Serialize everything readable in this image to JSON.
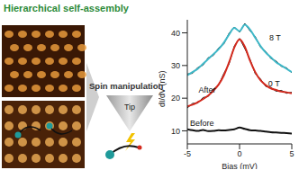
{
  "diagram": {
    "title": "Hierarchical self-assembly",
    "arrow_label": "Spin manipulation",
    "tip_label": "Tip"
  },
  "chart_data": {
    "type": "line",
    "x_label": "Bias (mV)",
    "y_label": "dI/dV (nS)",
    "x": [
      -5,
      -4.5,
      -4,
      -3.5,
      -3,
      -2.5,
      -2,
      -1.5,
      -1,
      -0.5,
      0,
      0.5,
      1,
      1.5,
      2,
      2.5,
      3,
      3.5,
      4,
      4.5,
      5
    ],
    "xlim": [
      -5,
      5
    ],
    "xticks": [
      -5,
      0,
      5
    ],
    "ylim": [
      6,
      44
    ],
    "yticks": [
      10,
      20,
      30,
      40
    ],
    "grid": false,
    "series": [
      {
        "name": "Before",
        "color": "#111111",
        "values": [
          10.5,
          10.2,
          10,
          10.3,
          9.9,
          10,
          10.2,
          10.1,
          10.3,
          10.5,
          11,
          10.6,
          10.2,
          10.1,
          10,
          9.8,
          9.6,
          9.5,
          9.4,
          9.3,
          9.2
        ],
        "label_x": -3.6,
        "label_y": 12.5
      },
      {
        "name": "0 T",
        "color": "#d42a1e",
        "values": [
          17.5,
          18,
          18.8,
          19.7,
          20.8,
          22.3,
          24.2,
          27,
          31,
          35.5,
          38,
          35.8,
          31.5,
          28,
          25.5,
          24,
          23,
          22.5,
          22,
          21.8,
          21.5
        ],
        "data": [
          17,
          18.4,
          18.5,
          20.2,
          20.5,
          22.8,
          24,
          27.6,
          30.5,
          36,
          38.3,
          35.2,
          31.9,
          27.5,
          25.9,
          23.6,
          23.3,
          22.1,
          22.4,
          21.5,
          21.8
        ],
        "label_x": 3.3,
        "label_y": 24.5
      },
      {
        "name": "8 T",
        "color": "#3fb8c8",
        "values": [
          27,
          28,
          29,
          30.5,
          32,
          33.5,
          35,
          37,
          39.5,
          41.5,
          40.5,
          42.5,
          41,
          38.5,
          36,
          34,
          32.5,
          31,
          30,
          29,
          28
        ],
        "data": [
          27.4,
          27.6,
          29.4,
          30.1,
          32.4,
          33.1,
          35.4,
          36.6,
          39.9,
          41.8,
          40.2,
          42.9,
          40.6,
          38.9,
          35.6,
          34.3,
          32.1,
          31.4,
          29.7,
          29.3,
          27.8
        ],
        "label_x": 3.4,
        "label_y": 38.5
      }
    ],
    "annotations": [
      {
        "text": "After",
        "x": -3.1,
        "y": 22.5
      }
    ]
  }
}
